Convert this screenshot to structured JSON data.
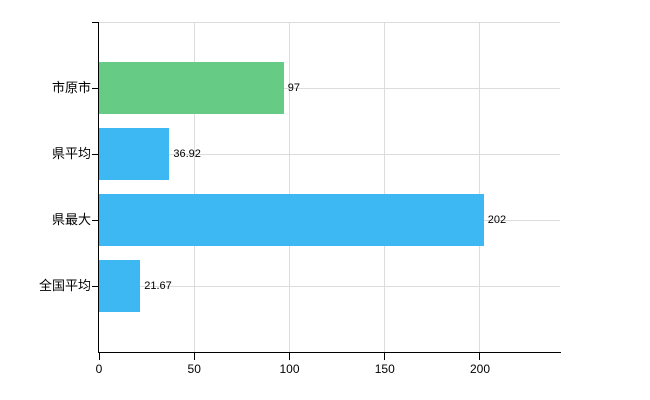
{
  "chart_data": {
    "type": "bar",
    "orientation": "horizontal",
    "categories": [
      "市原市",
      "県平均",
      "県最大",
      "全国平均"
    ],
    "values": [
      97,
      36.92,
      202,
      21.67
    ],
    "value_labels": [
      "97",
      "36.92",
      "202",
      "21.67"
    ],
    "bar_colors": [
      "#66cb85",
      "#3eb8f2",
      "#3eb8f2",
      "#3eb8f2"
    ],
    "x_ticks": [
      0,
      50,
      100,
      150,
      200
    ],
    "x_tick_labels": [
      "0",
      "50",
      "100",
      "150",
      "200"
    ],
    "xlim": [
      0,
      242
    ],
    "grid": true,
    "legend": false,
    "title": "",
    "colors": {
      "highlight_bar": "#66cb85",
      "default_bar": "#3eb8f2",
      "gridline": "#dcdcdc",
      "axis": "#000000",
      "text": "#000000",
      "background": "#ffffff"
    }
  }
}
